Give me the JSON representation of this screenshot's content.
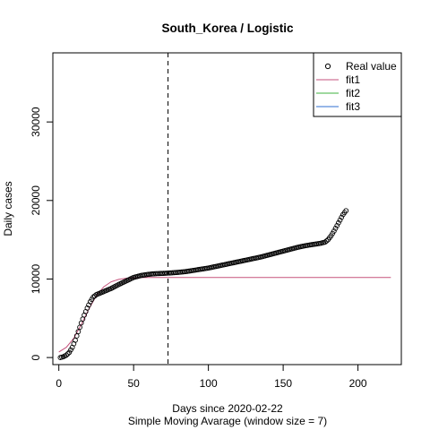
{
  "chart_data": {
    "type": "scatter",
    "title": "South_Korea / Logistic",
    "xlabel": "Days since 2020-02-22",
    "xsublabel": "Simple Moving Avarage (window size = 7)",
    "ylabel": "Daily cases",
    "xlim": [
      -4,
      229
    ],
    "ylim": [
      -900,
      38800
    ],
    "x_ticks": [
      0,
      50,
      100,
      150,
      200
    ],
    "y_ticks": [
      0,
      10000,
      20000,
      30000
    ],
    "vline_x": 73,
    "grid": false,
    "legend_position": "top-right",
    "legend": [
      {
        "label": "Real value",
        "kind": "point",
        "color": "#000000"
      },
      {
        "label": "fit1",
        "kind": "line",
        "color": "#c5527c"
      },
      {
        "label": "fit2",
        "kind": "line",
        "color": "#3fb33f"
      },
      {
        "label": "fit3",
        "kind": "line",
        "color": "#2f6fd0"
      }
    ],
    "real_value_curve": {
      "x": [
        1,
        3,
        5,
        7,
        9,
        11,
        13,
        15,
        17,
        19,
        21,
        23,
        25,
        30,
        35,
        40,
        45,
        50,
        55,
        60,
        65,
        70,
        75,
        80,
        85,
        90,
        95,
        100,
        105,
        110,
        115,
        120,
        125,
        130,
        135,
        140,
        145,
        150,
        155,
        160,
        165,
        170,
        175,
        178,
        180,
        182,
        184,
        186,
        188,
        190,
        192
      ],
      "y": [
        0,
        100,
        300,
        650,
        1300,
        2200,
        3300,
        4400,
        5400,
        6300,
        7100,
        7700,
        8000,
        8400,
        8800,
        9300,
        9750,
        10200,
        10450,
        10600,
        10680,
        10720,
        10780,
        10850,
        10950,
        11100,
        11250,
        11400,
        11600,
        11800,
        12000,
        12200,
        12400,
        12600,
        12800,
        13050,
        13300,
        13550,
        13800,
        14050,
        14250,
        14400,
        14550,
        14700,
        15000,
        15500,
        16100,
        16800,
        17500,
        18200,
        18700
      ]
    },
    "fit1_curve": {
      "x": [
        0,
        5,
        10,
        15,
        20,
        25,
        30,
        35,
        40,
        45,
        50,
        55,
        60,
        70,
        80,
        100,
        150,
        200,
        222
      ],
      "y": [
        700,
        1300,
        2450,
        4200,
        6150,
        7850,
        9000,
        9650,
        9950,
        10100,
        10150,
        10180,
        10190,
        10195,
        10195,
        10195,
        10195,
        10195,
        10195
      ]
    }
  }
}
